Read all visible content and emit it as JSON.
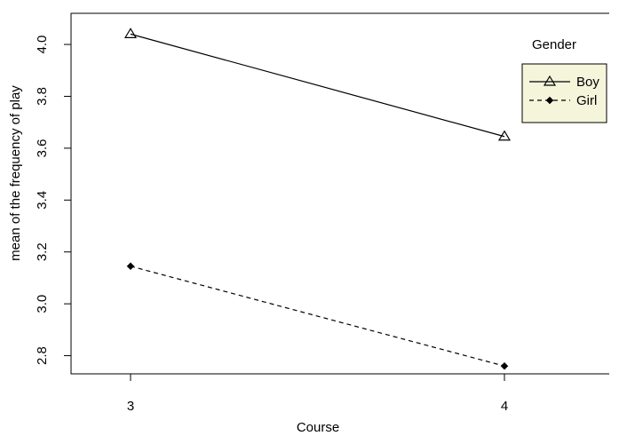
{
  "chart_data": {
    "type": "line",
    "title": "",
    "xlabel": "Course",
    "ylabel": "mean of the frequency of play",
    "categories": [
      "3",
      "4"
    ],
    "ylim": [
      2.73,
      4.12
    ],
    "yticks": [
      "2.8",
      "3.0",
      "3.2",
      "3.4",
      "3.6",
      "3.8",
      "4.0"
    ],
    "grid": false,
    "legend": {
      "title": "Gender",
      "placement": "top-right",
      "background": "#f5f5dc"
    },
    "series": [
      {
        "name": "Boy",
        "values": [
          4.04,
          3.645
        ],
        "marker": "open-triangle",
        "line": "solid",
        "color": "#000000"
      },
      {
        "name": "Girl",
        "values": [
          3.145,
          2.76
        ],
        "marker": "filled-diamond",
        "line": "dashed",
        "color": "#000000"
      }
    ]
  }
}
